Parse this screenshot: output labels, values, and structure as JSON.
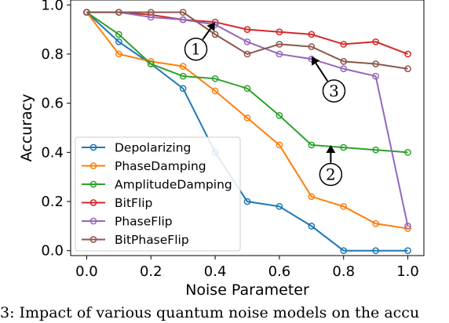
{
  "chart_data": {
    "type": "line",
    "title": "",
    "xlabel": "Noise Parameter",
    "ylabel": "Accuracy",
    "xlim": [
      -0.05,
      1.05
    ],
    "ylim": [
      -0.02,
      1.02
    ],
    "xticks": [
      "0.0",
      "0.2",
      "0.4",
      "0.6",
      "0.8",
      "1.0"
    ],
    "yticks": [
      "0.0",
      "0.2",
      "0.4",
      "0.6",
      "0.8",
      "1.0"
    ],
    "grid": false,
    "legend_position": "lower-left",
    "x": [
      0.0,
      0.1,
      0.2,
      0.3,
      0.4,
      0.5,
      0.6,
      0.7,
      0.8,
      0.9,
      1.0
    ],
    "series": [
      {
        "name": "Depolarizing",
        "color": "#1f77b4",
        "values": [
          0.97,
          0.85,
          0.76,
          0.66,
          0.4,
          0.2,
          0.18,
          0.1,
          0.0,
          0.0,
          0.0
        ]
      },
      {
        "name": "PhaseDamping",
        "color": "#ff7f0e",
        "values": [
          0.97,
          0.8,
          0.77,
          0.75,
          0.65,
          0.54,
          0.43,
          0.22,
          0.18,
          0.11,
          0.09
        ]
      },
      {
        "name": "AmplitudeDamping",
        "color": "#2ca02c",
        "values": [
          0.97,
          0.88,
          0.76,
          0.71,
          0.7,
          0.66,
          0.55,
          0.43,
          0.42,
          0.41,
          0.4
        ]
      },
      {
        "name": "BitFlip",
        "color": "#d62728",
        "values": [
          0.97,
          0.97,
          0.96,
          0.94,
          0.93,
          0.9,
          0.89,
          0.88,
          0.84,
          0.85,
          0.8
        ]
      },
      {
        "name": "PhaseFlip",
        "color": "#9467bd",
        "values": [
          0.97,
          0.97,
          0.95,
          0.94,
          0.92,
          0.85,
          0.8,
          0.78,
          0.74,
          0.71,
          0.1
        ]
      },
      {
        "name": "BitPhaseFlip",
        "color": "#8c564b",
        "values": [
          0.97,
          0.97,
          0.97,
          0.97,
          0.88,
          0.8,
          0.84,
          0.83,
          0.77,
          0.76,
          0.74
        ]
      }
    ],
    "annotations": [
      {
        "label": "1",
        "tip": [
          0.4,
          0.93
        ],
        "near": [
          0.34,
          0.82
        ]
      },
      {
        "label": "2",
        "tip": [
          0.76,
          0.43
        ],
        "near": [
          0.76,
          0.31
        ]
      },
      {
        "label": "3",
        "tip": [
          0.7,
          0.79
        ],
        "near": [
          0.77,
          0.65
        ]
      }
    ]
  },
  "caption": "3: Impact of various quantum noise models on the accu"
}
